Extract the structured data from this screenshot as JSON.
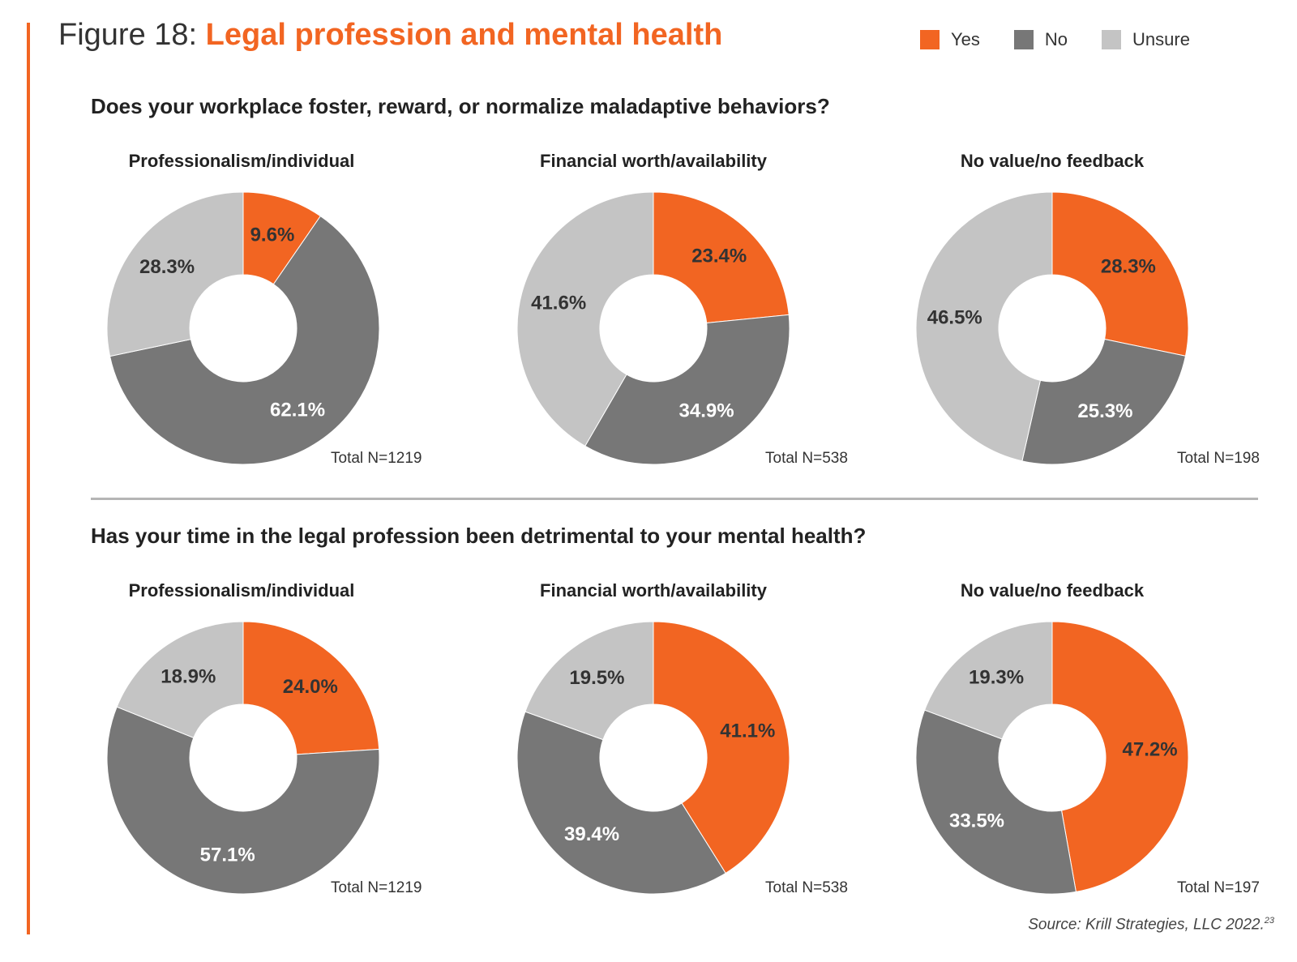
{
  "figure": {
    "prefix": "Figure 18:",
    "title": "Legal profession and mental health",
    "source": "Source: Krill Strategies, LLC 2022.",
    "source_note": "23"
  },
  "legend": [
    {
      "label": "Yes",
      "color": "#f26522"
    },
    {
      "label": "No",
      "color": "#777777"
    },
    {
      "label": "Unsure",
      "color": "#c4c4c4"
    }
  ],
  "questions": [
    "Does your workplace foster, reward, or normalize maladaptive behaviors?",
    "Has your time in the legal profession been detrimental to your mental health?"
  ],
  "chart_data": [
    {
      "type": "pie",
      "question": 0,
      "title": "Professionalism/individual",
      "total": "Total N=1219",
      "categories": [
        "Yes",
        "No",
        "Unsure"
      ],
      "values": [
        9.6,
        62.1,
        28.3
      ],
      "labels": [
        "9.6%",
        "62.1%",
        "28.3%"
      ]
    },
    {
      "type": "pie",
      "question": 0,
      "title": "Financial worth/availability",
      "total": "Total N=538",
      "categories": [
        "Yes",
        "No",
        "Unsure"
      ],
      "values": [
        23.4,
        34.9,
        41.6
      ],
      "labels": [
        "23.4%",
        "34.9%",
        "41.6%"
      ]
    },
    {
      "type": "pie",
      "question": 0,
      "title": "No value/no feedback",
      "total": "Total N=198",
      "categories": [
        "Yes",
        "No",
        "Unsure"
      ],
      "values": [
        28.3,
        25.3,
        46.5
      ],
      "labels": [
        "28.3%",
        "25.3%",
        "46.5%"
      ]
    },
    {
      "type": "pie",
      "question": 1,
      "title": "Professionalism/individual",
      "total": "Total N=1219",
      "categories": [
        "Yes",
        "No",
        "Unsure"
      ],
      "values": [
        24.0,
        57.1,
        18.9
      ],
      "labels": [
        "24.0%",
        "57.1%",
        "18.9%"
      ]
    },
    {
      "type": "pie",
      "question": 1,
      "title": "Financial worth/availability",
      "total": "Total N=538",
      "categories": [
        "Yes",
        "No",
        "Unsure"
      ],
      "values": [
        41.1,
        39.4,
        19.5
      ],
      "labels": [
        "41.1%",
        "39.4%",
        "19.5%"
      ]
    },
    {
      "type": "pie",
      "question": 1,
      "title": "No value/no feedback",
      "total": "Total N=197",
      "categories": [
        "Yes",
        "No",
        "Unsure"
      ],
      "values": [
        47.2,
        33.5,
        19.3
      ],
      "labels": [
        "47.2%",
        "33.5%",
        "19.3%"
      ]
    }
  ]
}
